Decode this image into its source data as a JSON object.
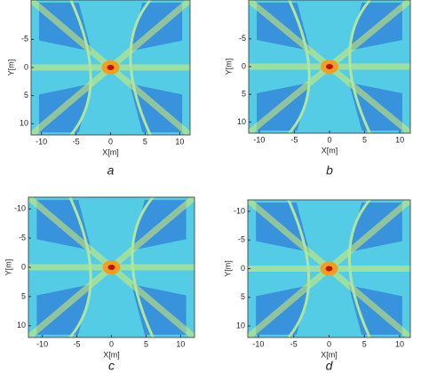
{
  "chart_data": [
    {
      "type": "heatmap",
      "caption": "a",
      "xlabel": "X[m]",
      "ylabel": "Y[m]",
      "xlim": [
        -11.5,
        11.5
      ],
      "ylim": [
        -12,
        12
      ],
      "xticks": [
        -10,
        -5,
        0,
        5,
        10
      ],
      "yticks": [
        -5,
        0,
        5,
        10
      ]
    },
    {
      "type": "heatmap",
      "caption": "b",
      "xlabel": "X[m]",
      "ylabel": "Y[m]",
      "xlim": [
        -11.5,
        11.5
      ],
      "ylim": [
        -12,
        12
      ],
      "xticks": [
        -10,
        -5,
        0,
        5,
        10
      ],
      "yticks": [
        -5,
        0,
        5,
        10
      ]
    },
    {
      "type": "heatmap",
      "caption": "c",
      "xlabel": "X[m]",
      "ylabel": "Y[m]",
      "xlim": [
        -12,
        12
      ],
      "ylim": [
        -12,
        12
      ],
      "xticks": [
        -10,
        -5,
        0,
        5,
        10
      ],
      "yticks": [
        -10,
        -5,
        0,
        5,
        10
      ]
    },
    {
      "type": "heatmap",
      "caption": "d",
      "xlabel": "X[m]",
      "ylabel": "Y[m]",
      "xlim": [
        -11.5,
        11.5
      ],
      "ylim": [
        -12,
        12
      ],
      "xticks": [
        -10,
        -5,
        0,
        5,
        10
      ],
      "yticks": [
        -10,
        -5,
        0,
        5,
        10
      ]
    }
  ]
}
